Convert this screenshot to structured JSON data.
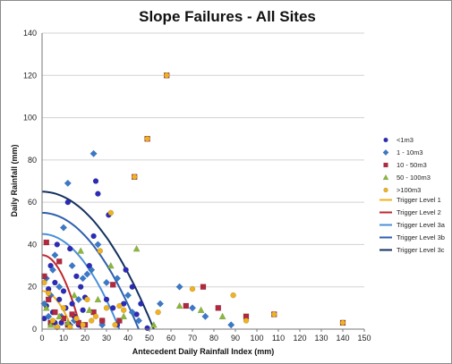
{
  "chart_data": {
    "type": "scatter",
    "title": "Slope Failures - All Sites",
    "xlabel": "Antecedent Daily Rainfall Index (mm)",
    "ylabel": "Daily Rainfall (mm)",
    "xlim": [
      0,
      150
    ],
    "ylim": [
      0,
      140
    ],
    "x_ticks": [
      "0",
      "10",
      "20",
      "30",
      "40",
      "50",
      "60",
      "70",
      "80",
      "90",
      "100",
      "110",
      "120",
      "130",
      "140",
      "150"
    ],
    "y_ticks": [
      "0",
      "20",
      "40",
      "60",
      "80",
      "100",
      "120",
      "140"
    ],
    "grid": "horizontal",
    "legend_position": "right",
    "series": [
      {
        "name": "<1m3",
        "marker": "circle",
        "color": "#2b2bb8",
        "points": [
          [
            1,
            5
          ],
          [
            2,
            11
          ],
          [
            3,
            19
          ],
          [
            4,
            30
          ],
          [
            5,
            8
          ],
          [
            6,
            22
          ],
          [
            7,
            40
          ],
          [
            8,
            14
          ],
          [
            9,
            3
          ],
          [
            10,
            18
          ],
          [
            12,
            60
          ],
          [
            13,
            38
          ],
          [
            14,
            12
          ],
          [
            15,
            6
          ],
          [
            16,
            25
          ],
          [
            18,
            20
          ],
          [
            19,
            9
          ],
          [
            20,
            15
          ],
          [
            22,
            30
          ],
          [
            24,
            44
          ],
          [
            25,
            70
          ],
          [
            26,
            64
          ],
          [
            28,
            4
          ],
          [
            30,
            14
          ],
          [
            31,
            54
          ],
          [
            33,
            10
          ],
          [
            35,
            2
          ],
          [
            38,
            12
          ],
          [
            39,
            28
          ],
          [
            42,
            20
          ],
          [
            44,
            7
          ],
          [
            46,
            12
          ],
          [
            49,
            0.5
          ],
          [
            6,
            3
          ],
          [
            11,
            10
          ],
          [
            17,
            2
          ]
        ]
      },
      {
        "name": "1 - 10m3",
        "marker": "diamond",
        "color": "#3a78c9",
        "points": [
          [
            1,
            12
          ],
          [
            2,
            24
          ],
          [
            3,
            6
          ],
          [
            4,
            16
          ],
          [
            5,
            28
          ],
          [
            6,
            35
          ],
          [
            8,
            20
          ],
          [
            9,
            6
          ],
          [
            10,
            48
          ],
          [
            12,
            69
          ],
          [
            14,
            30
          ],
          [
            15,
            4
          ],
          [
            17,
            14
          ],
          [
            19,
            24
          ],
          [
            21,
            26
          ],
          [
            23,
            28
          ],
          [
            24,
            83
          ],
          [
            26,
            40
          ],
          [
            28,
            2
          ],
          [
            30,
            22
          ],
          [
            35,
            24
          ],
          [
            40,
            16
          ],
          [
            42,
            8
          ],
          [
            45,
            4
          ],
          [
            55,
            12
          ],
          [
            64,
            20
          ],
          [
            70,
            10
          ],
          [
            76,
            6
          ],
          [
            88,
            2
          ],
          [
            7,
            1
          ],
          [
            13,
            2
          ]
        ]
      },
      {
        "name": "10 - 50m3",
        "marker": "square",
        "color": "#b3283f",
        "points": [
          [
            1,
            25
          ],
          [
            2,
            41
          ],
          [
            3,
            14
          ],
          [
            4,
            3
          ],
          [
            6,
            8
          ],
          [
            8,
            32
          ],
          [
            10,
            5
          ],
          [
            12,
            2
          ],
          [
            14,
            7
          ],
          [
            17,
            3
          ],
          [
            20,
            2
          ],
          [
            24,
            8
          ],
          [
            28,
            4
          ],
          [
            33,
            21
          ],
          [
            36,
            4
          ],
          [
            43,
            72
          ],
          [
            49,
            90
          ],
          [
            58,
            120
          ],
          [
            67,
            11
          ],
          [
            75,
            20
          ],
          [
            82,
            10
          ],
          [
            95,
            6
          ],
          [
            108,
            7
          ],
          [
            140,
            3
          ]
        ]
      },
      {
        "name": "50 - 100m3",
        "marker": "triangle",
        "color": "#8ab83a",
        "points": [
          [
            2,
            10
          ],
          [
            4,
            2
          ],
          [
            8,
            6
          ],
          [
            12,
            3
          ],
          [
            15,
            16
          ],
          [
            18,
            37
          ],
          [
            22,
            9
          ],
          [
            26,
            14
          ],
          [
            32,
            30
          ],
          [
            38,
            6
          ],
          [
            44,
            38
          ],
          [
            52,
            2
          ],
          [
            64,
            11
          ],
          [
            74,
            9
          ],
          [
            84,
            6
          ]
        ]
      },
      {
        "name": ">100m3",
        "marker": "circle",
        "color": "#f0b21e",
        "points": [
          [
            1,
            22
          ],
          [
            3,
            17
          ],
          [
            5,
            4
          ],
          [
            7,
            1
          ],
          [
            10,
            10
          ],
          [
            13,
            1
          ],
          [
            16,
            5
          ],
          [
            19,
            2
          ],
          [
            21,
            14
          ],
          [
            23,
            4
          ],
          [
            25,
            6
          ],
          [
            27,
            37
          ],
          [
            30,
            10
          ],
          [
            32,
            55
          ],
          [
            34,
            2
          ],
          [
            36,
            11
          ],
          [
            38,
            9
          ],
          [
            43,
            72
          ],
          [
            49,
            90
          ],
          [
            54,
            8
          ],
          [
            58,
            120
          ],
          [
            70,
            19
          ],
          [
            89,
            16
          ],
          [
            95,
            4
          ],
          [
            108,
            7
          ],
          [
            140,
            3
          ]
        ]
      }
    ],
    "trigger_levels": [
      {
        "name": "Trigger Level 1",
        "color": "#f2b01e",
        "peak": 18,
        "x_int": 14
      },
      {
        "name": "Trigger Level 2",
        "color": "#c0282e",
        "peak": 35,
        "x_int": 18
      },
      {
        "name": "Trigger Level 3a",
        "color": "#4a90d9",
        "peak": 45,
        "x_int": 36
      },
      {
        "name": "Trigger Level 3b",
        "color": "#2f5fae",
        "peak": 55,
        "x_int": 45
      },
      {
        "name": "Trigger Level 3c",
        "color": "#14305f",
        "peak": 65,
        "x_int": 52
      }
    ]
  }
}
